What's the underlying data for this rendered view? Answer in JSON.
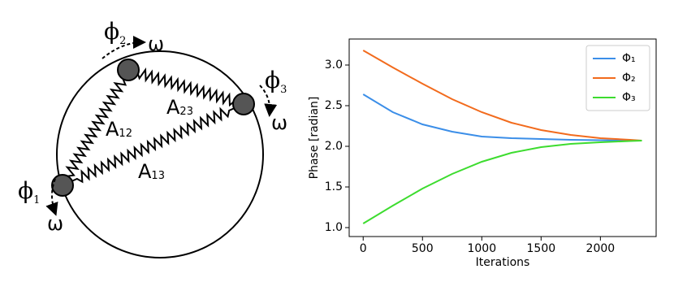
{
  "diagram": {
    "nodes": [
      {
        "symbol": "ϕ",
        "index": "1",
        "speed": "ω"
      },
      {
        "symbol": "ϕ",
        "index": "2",
        "speed": "ω"
      },
      {
        "symbol": "ϕ",
        "index": "3",
        "speed": "ω"
      }
    ],
    "springs": [
      {
        "symbol": "A",
        "index": "12"
      },
      {
        "symbol": "A",
        "index": "23"
      },
      {
        "symbol": "A",
        "index": "13"
      }
    ]
  },
  "chart_data": {
    "type": "line",
    "xlabel": "Iterations",
    "ylabel": "Phase [radian]",
    "x": [
      0,
      250,
      500,
      750,
      1000,
      1250,
      1500,
      1750,
      2000,
      2250,
      2350
    ],
    "series": [
      {
        "name": "Φ₁",
        "color": "#3b8ee8",
        "values": [
          2.64,
          2.42,
          2.27,
          2.18,
          2.12,
          2.1,
          2.09,
          2.08,
          2.075,
          2.07,
          2.07
        ]
      },
      {
        "name": "Φ₂",
        "color": "#f26b1d",
        "values": [
          3.18,
          2.97,
          2.77,
          2.58,
          2.42,
          2.29,
          2.2,
          2.14,
          2.1,
          2.08,
          2.07
        ]
      },
      {
        "name": "Φ₃",
        "color": "#3ddc2f",
        "values": [
          1.05,
          1.27,
          1.48,
          1.66,
          1.81,
          1.92,
          1.99,
          2.03,
          2.05,
          2.065,
          2.07
        ]
      }
    ],
    "xlim": [
      -118,
      2470
    ],
    "ylim": [
      0.89,
      3.32
    ],
    "xticks": [
      0,
      500,
      1000,
      1500,
      2000
    ],
    "yticks": [
      {
        "value": 1,
        "label": "1.0"
      },
      1.5,
      {
        "value": 2,
        "label": "2.0"
      },
      2.5,
      {
        "value": 3,
        "label": "3.0"
      }
    ],
    "legend": "upper right"
  }
}
